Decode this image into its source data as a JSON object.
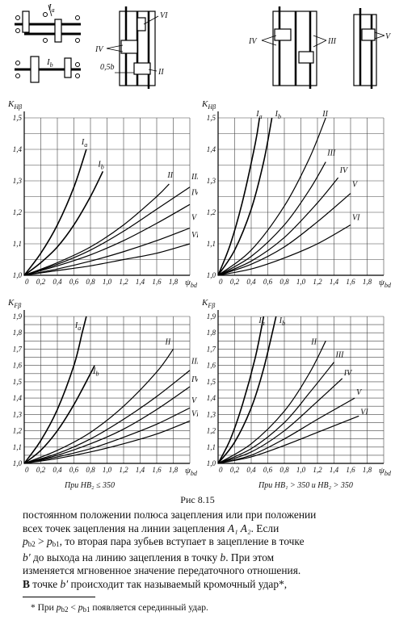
{
  "figure_caption": "Рис   8.15",
  "diagrams": {
    "labels": [
      "I",
      "I",
      "VI",
      "IV",
      "0,5b",
      "II",
      "IV",
      "III",
      "V"
    ],
    "subs": [
      "a",
      "b"
    ]
  },
  "chart_data": [
    {
      "type": "line",
      "ylabel": "K",
      "ylabel_sub": "Hβ",
      "xlabel": "ψ",
      "xlabel_sub": "bd",
      "x_ticks": [
        "0",
        "0,2",
        "0,4",
        "0,6",
        "0,8",
        "1,0",
        "1,2",
        "1,4",
        "1,6",
        "1,8"
      ],
      "y_ticks": [
        "1,0",
        "1,1",
        "1,2",
        "1,3",
        "1,4",
        "1,5"
      ],
      "xlim": [
        0,
        2.0
      ],
      "ylim": [
        1.0,
        1.5
      ],
      "caption": "",
      "series": [
        {
          "name": "I",
          "sub": "a",
          "points": [
            [
              0,
              1.0
            ],
            [
              0.2,
              1.07
            ],
            [
              0.4,
              1.16
            ],
            [
              0.6,
              1.28
            ],
            [
              0.75,
              1.4
            ]
          ]
        },
        {
          "name": "I",
          "sub": "b",
          "points": [
            [
              0,
              1.0
            ],
            [
              0.2,
              1.04
            ],
            [
              0.4,
              1.09
            ],
            [
              0.6,
              1.16
            ],
            [
              0.8,
              1.25
            ],
            [
              0.95,
              1.33
            ]
          ]
        },
        {
          "name": "II",
          "points": [
            [
              0,
              1.0
            ],
            [
              0.4,
              1.04
            ],
            [
              0.8,
              1.09
            ],
            [
              1.2,
              1.16
            ],
            [
              1.6,
              1.25
            ],
            [
              1.75,
              1.29
            ]
          ]
        },
        {
          "name": "III",
          "points": [
            [
              0,
              1.0
            ],
            [
              0.4,
              1.035
            ],
            [
              0.8,
              1.08
            ],
            [
              1.2,
              1.14
            ],
            [
              1.6,
              1.21
            ],
            [
              2.0,
              1.28
            ]
          ]
        },
        {
          "name": "IV",
          "points": [
            [
              0,
              1.0
            ],
            [
              0.4,
              1.03
            ],
            [
              0.8,
              1.065
            ],
            [
              1.2,
              1.11
            ],
            [
              1.6,
              1.165
            ],
            [
              2.0,
              1.225
            ]
          ]
        },
        {
          "name": "V",
          "points": [
            [
              0,
              1.0
            ],
            [
              0.4,
              1.02
            ],
            [
              0.8,
              1.045
            ],
            [
              1.2,
              1.075
            ],
            [
              1.6,
              1.11
            ],
            [
              2.0,
              1.15
            ]
          ]
        },
        {
          "name": "VI",
          "points": [
            [
              0,
              1.0
            ],
            [
              0.4,
              1.015
            ],
            [
              0.8,
              1.03
            ],
            [
              1.2,
              1.05
            ],
            [
              1.6,
              1.07
            ],
            [
              2.0,
              1.1
            ]
          ]
        }
      ]
    },
    {
      "type": "line",
      "ylabel": "K",
      "ylabel_sub": "Hβ",
      "xlabel": "ψ",
      "xlabel_sub": "bd",
      "x_ticks": [
        "0",
        "0,2",
        "0,4",
        "0,6",
        "0,8",
        "1,0",
        "1,2",
        "1,4",
        "1,6",
        "1,8"
      ],
      "y_ticks": [
        "1,0",
        "1,1",
        "1,2",
        "1,3",
        "1,4",
        "1,5"
      ],
      "xlim": [
        0,
        2.0
      ],
      "ylim": [
        1.0,
        1.5
      ],
      "caption": "",
      "series": [
        {
          "name": "I",
          "sub": "a",
          "points": [
            [
              0,
              1.0
            ],
            [
              0.15,
              1.1
            ],
            [
              0.3,
              1.24
            ],
            [
              0.45,
              1.42
            ],
            [
              0.5,
              1.5
            ]
          ]
        },
        {
          "name": "I",
          "sub": "b",
          "points": [
            [
              0,
              1.0
            ],
            [
              0.2,
              1.08
            ],
            [
              0.4,
              1.21
            ],
            [
              0.55,
              1.36
            ],
            [
              0.65,
              1.5
            ]
          ]
        },
        {
          "name": "II",
          "points": [
            [
              0,
              1.0
            ],
            [
              0.4,
              1.08
            ],
            [
              0.8,
              1.22
            ],
            [
              1.1,
              1.37
            ],
            [
              1.3,
              1.5
            ]
          ]
        },
        {
          "name": "III",
          "points": [
            [
              0,
              1.0
            ],
            [
              0.4,
              1.06
            ],
            [
              0.8,
              1.16
            ],
            [
              1.1,
              1.27
            ],
            [
              1.3,
              1.36
            ]
          ]
        },
        {
          "name": "IV",
          "points": [
            [
              0,
              1.0
            ],
            [
              0.4,
              1.045
            ],
            [
              0.8,
              1.12
            ],
            [
              1.2,
              1.23
            ],
            [
              1.45,
              1.31
            ]
          ]
        },
        {
          "name": "V",
          "points": [
            [
              0,
              1.0
            ],
            [
              0.4,
              1.035
            ],
            [
              0.8,
              1.09
            ],
            [
              1.2,
              1.17
            ],
            [
              1.6,
              1.26
            ]
          ]
        },
        {
          "name": "VI",
          "points": [
            [
              0,
              1.0
            ],
            [
              0.4,
              1.02
            ],
            [
              0.8,
              1.055
            ],
            [
              1.2,
              1.1
            ],
            [
              1.6,
              1.16
            ]
          ]
        }
      ]
    },
    {
      "type": "line",
      "ylabel": "K",
      "ylabel_sub": "Fβ",
      "xlabel": "ψ",
      "xlabel_sub": "bd",
      "x_ticks": [
        "0",
        "0,2",
        "0,4",
        "0,6",
        "0,8",
        "1,0",
        "1,2",
        "1,4",
        "1,6",
        "1,8"
      ],
      "y_ticks": [
        "1,0",
        "1,1",
        "1,2",
        "1,3",
        "1,4",
        "1,5",
        "1,6",
        "1,7",
        "1,8",
        "1,9"
      ],
      "xlim": [
        0,
        2.0
      ],
      "ylim": [
        1.0,
        1.9
      ],
      "caption": "При HB₂ ≤ 350",
      "series": [
        {
          "name": "I",
          "sub": "a",
          "points": [
            [
              0,
              1.0
            ],
            [
              0.2,
              1.14
            ],
            [
              0.4,
              1.33
            ],
            [
              0.6,
              1.6
            ],
            [
              0.7,
              1.8
            ],
            [
              0.75,
              1.9
            ]
          ]
        },
        {
          "name": "I",
          "sub": "b",
          "points": [
            [
              0,
              1.0
            ],
            [
              0.2,
              1.08
            ],
            [
              0.4,
              1.2
            ],
            [
              0.6,
              1.36
            ],
            [
              0.8,
              1.55
            ],
            [
              0.85,
              1.6
            ]
          ]
        },
        {
          "name": "II",
          "points": [
            [
              0,
              1.0
            ],
            [
              0.4,
              1.08
            ],
            [
              0.8,
              1.19
            ],
            [
              1.2,
              1.35
            ],
            [
              1.6,
              1.56
            ],
            [
              1.8,
              1.7
            ]
          ]
        },
        {
          "name": "III",
          "points": [
            [
              0,
              1.0
            ],
            [
              0.4,
              1.06
            ],
            [
              0.8,
              1.15
            ],
            [
              1.2,
              1.27
            ],
            [
              1.6,
              1.41
            ],
            [
              2.0,
              1.57
            ]
          ]
        },
        {
          "name": "IV",
          "points": [
            [
              0,
              1.0
            ],
            [
              0.4,
              1.05
            ],
            [
              0.8,
              1.12
            ],
            [
              1.2,
              1.21
            ],
            [
              1.6,
              1.33
            ],
            [
              2.0,
              1.47
            ]
          ]
        },
        {
          "name": "V",
          "points": [
            [
              0,
              1.0
            ],
            [
              0.4,
              1.04
            ],
            [
              0.8,
              1.09
            ],
            [
              1.2,
              1.16
            ],
            [
              1.6,
              1.24
            ],
            [
              2.0,
              1.34
            ]
          ]
        },
        {
          "name": "VI",
          "points": [
            [
              0,
              1.0
            ],
            [
              0.4,
              1.03
            ],
            [
              0.8,
              1.07
            ],
            [
              1.2,
              1.12
            ],
            [
              1.6,
              1.18
            ],
            [
              2.0,
              1.26
            ]
          ]
        }
      ]
    },
    {
      "type": "line",
      "ylabel": "K",
      "ylabel_sub": "Fβ",
      "xlabel": "ψ",
      "xlabel_sub": "bd",
      "x_ticks": [
        "0",
        "0,2",
        "0,4",
        "0,6",
        "0,8",
        "1,0",
        "1,2",
        "1,4",
        "1,6",
        "1,8"
      ],
      "y_ticks": [
        "1,0",
        "1,1",
        "1,2",
        "1,3",
        "1,4",
        "1,5",
        "1,6",
        "1,7",
        "1,8",
        "1,9"
      ],
      "xlim": [
        0,
        2.0
      ],
      "ylim": [
        1.0,
        1.9
      ],
      "caption": "При HB₁ > 350 и HB₂ > 350",
      "series": [
        {
          "name": "I",
          "sub": "a",
          "points": [
            [
              0,
              1.0
            ],
            [
              0.15,
              1.15
            ],
            [
              0.3,
              1.37
            ],
            [
              0.45,
              1.65
            ],
            [
              0.55,
              1.9
            ]
          ]
        },
        {
          "name": "I",
          "sub": "b",
          "points": [
            [
              0,
              1.0
            ],
            [
              0.2,
              1.13
            ],
            [
              0.4,
              1.34
            ],
            [
              0.55,
              1.58
            ],
            [
              0.7,
              1.9
            ]
          ]
        },
        {
          "name": "II",
          "points": [
            [
              0,
              1.0
            ],
            [
              0.4,
              1.12
            ],
            [
              0.8,
              1.32
            ],
            [
              1.1,
              1.55
            ],
            [
              1.3,
              1.75
            ]
          ]
        },
        {
          "name": "III",
          "points": [
            [
              0,
              1.0
            ],
            [
              0.4,
              1.09
            ],
            [
              0.8,
              1.25
            ],
            [
              1.1,
              1.43
            ],
            [
              1.4,
              1.62
            ]
          ]
        },
        {
          "name": "IV",
          "points": [
            [
              0,
              1.0
            ],
            [
              0.4,
              1.07
            ],
            [
              0.8,
              1.2
            ],
            [
              1.2,
              1.38
            ],
            [
              1.5,
              1.52
            ]
          ]
        },
        {
          "name": "V",
          "points": [
            [
              0,
              1.0
            ],
            [
              0.4,
              1.05
            ],
            [
              0.8,
              1.15
            ],
            [
              1.2,
              1.27
            ],
            [
              1.65,
              1.4
            ]
          ]
        },
        {
          "name": "VI",
          "points": [
            [
              0,
              1.0
            ],
            [
              0.4,
              1.04
            ],
            [
              0.8,
              1.11
            ],
            [
              1.2,
              1.19
            ],
            [
              1.7,
              1.29
            ]
          ]
        }
      ]
    }
  ],
  "text": {
    "line1": "постоянном положении полюса зацепления или при положении",
    "line2a": "всех точек зацепления на линии зацепления ",
    "line2b": "A₁ A₂",
    "line2c": ". Если",
    "line3a": "p",
    "line3b": "b2",
    "line3c": " > ",
    "line3d": "p",
    "line3e": "b1",
    "line3f": ", то вторая пара зубьев вступает в зацепление в точке",
    "line4a": "b′",
    "line4b": " до выхода на линию зацепления в точку ",
    "line4c": "b",
    "line4d": ". При этом",
    "line5": "изменяется мгновенное значение передаточного отношения.",
    "line6a": "В",
    "line6b": " точке ",
    "line6c": "b′",
    "line6d": " происходит так называемый кромочный удар",
    "line6e": "*,",
    "footnote_a": "* При ",
    "footnote_b": "p",
    "footnote_c": "b2",
    "footnote_d": " < ",
    "footnote_e": "p",
    "footnote_f": "b1",
    "footnote_g": "  появляется серединный удар."
  }
}
